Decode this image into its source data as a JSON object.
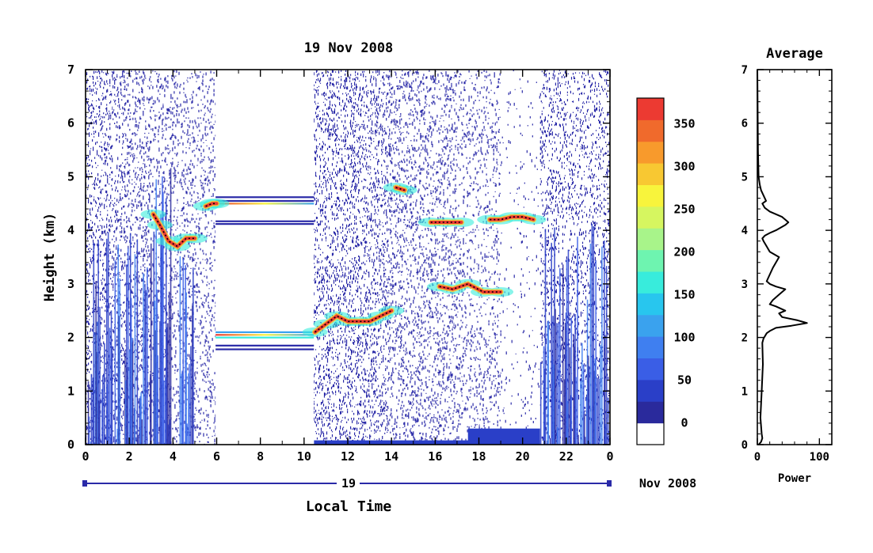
{
  "chart_data": [
    {
      "type": "heatmap",
      "title": "19 Nov 2008",
      "xlabel": "Local Time",
      "ylabel": "Height (km)",
      "x_ticks": [
        "0",
        "2",
        "4",
        "6",
        "8",
        "10",
        "12",
        "14",
        "16",
        "18",
        "20",
        "22",
        "0"
      ],
      "y_ticks": [
        "0",
        "1",
        "2",
        "3",
        "4",
        "5",
        "6",
        "7"
      ],
      "xlim": [
        0,
        24
      ],
      "ylim": [
        0,
        7
      ],
      "date_axis": {
        "day_label": "19",
        "month_label": "Nov 2008"
      },
      "colorbar": {
        "ticks": [
          "0",
          "50",
          "100",
          "150",
          "200",
          "250",
          "300",
          "350"
        ],
        "min": 0,
        "max": 380,
        "colors": [
          "#ffffff",
          "#2a2a9c",
          "#2a3fc8",
          "#3a5ee6",
          "#3f7ff0",
          "#3aa2ee",
          "#28c6ee",
          "#38ecdc",
          "#6ef4b0",
          "#a8f48a",
          "#d6f660",
          "#f8f43c",
          "#f8c832",
          "#f89a2c",
          "#f06a2c",
          "#ec3a32"
        ]
      },
      "features": [
        {
          "name": "cloud layer",
          "x": [
            3.1,
            3.4,
            3.8,
            4.2,
            4.6,
            5.0
          ],
          "y": [
            4.3,
            4.1,
            3.8,
            3.7,
            3.85,
            3.85
          ]
        },
        {
          "name": "cloud layer",
          "x": [
            5.5,
            5.8,
            6.0
          ],
          "y": [
            4.45,
            4.5,
            4.5
          ]
        },
        {
          "name": "cloud layer",
          "x": [
            10.5,
            11.0,
            11.5,
            12.0,
            12.5,
            13.0,
            13.5,
            14.0
          ],
          "y": [
            2.1,
            2.25,
            2.4,
            2.3,
            2.3,
            2.3,
            2.4,
            2.5
          ]
        },
        {
          "name": "cloud layer",
          "x": [
            14.2,
            14.6
          ],
          "y": [
            4.8,
            4.75
          ]
        },
        {
          "name": "cloud layer",
          "x": [
            15.8,
            16.5,
            17.2
          ],
          "y": [
            4.15,
            4.15,
            4.15
          ]
        },
        {
          "name": "cloud layer",
          "x": [
            16.2,
            16.8,
            17.5,
            18.2,
            19.0
          ],
          "y": [
            2.95,
            2.9,
            3.0,
            2.85,
            2.85
          ]
        },
        {
          "name": "cloud layer",
          "x": [
            18.5,
            19.0,
            19.5,
            20.0,
            20.5
          ],
          "y": [
            4.2,
            4.2,
            4.25,
            4.25,
            4.2
          ]
        }
      ]
    },
    {
      "type": "line",
      "title": "Average",
      "xlabel": "Power",
      "ylabel": "",
      "x_ticks": [
        "0",
        "100"
      ],
      "y_ticks": [
        "0",
        "1",
        "2",
        "3",
        "4",
        "5",
        "6",
        "7"
      ],
      "xlim": [
        0,
        120
      ],
      "ylim": [
        0,
        7
      ],
      "series": [
        {
          "x": [
            2,
            6,
            8,
            7,
            5,
            7,
            9,
            8,
            10,
            12,
            15,
            20,
            30,
            55,
            80,
            65,
            40,
            35,
            45,
            30,
            20,
            25,
            35,
            45,
            30,
            20,
            15,
            25,
            35,
            20,
            15,
            10,
            8,
            12,
            20,
            30,
            45,
            50,
            40,
            20,
            12,
            8,
            14,
            10,
            6,
            4,
            2,
            1,
            0
          ],
          "y": [
            0,
            0.05,
            0.12,
            0.2,
            0.5,
            1.0,
            1.5,
            1.9,
            1.98,
            2.02,
            2.08,
            2.12,
            2.18,
            2.22,
            2.27,
            2.32,
            2.38,
            2.45,
            2.5,
            2.58,
            2.62,
            2.7,
            2.8,
            2.9,
            2.95,
            3.0,
            3.05,
            3.3,
            3.5,
            3.6,
            3.7,
            3.8,
            3.85,
            3.9,
            3.95,
            4.0,
            4.1,
            4.15,
            4.25,
            4.35,
            4.42,
            4.5,
            4.55,
            4.65,
            4.75,
            4.85,
            5.0,
            5.5,
            7.0
          ]
        }
      ]
    }
  ]
}
